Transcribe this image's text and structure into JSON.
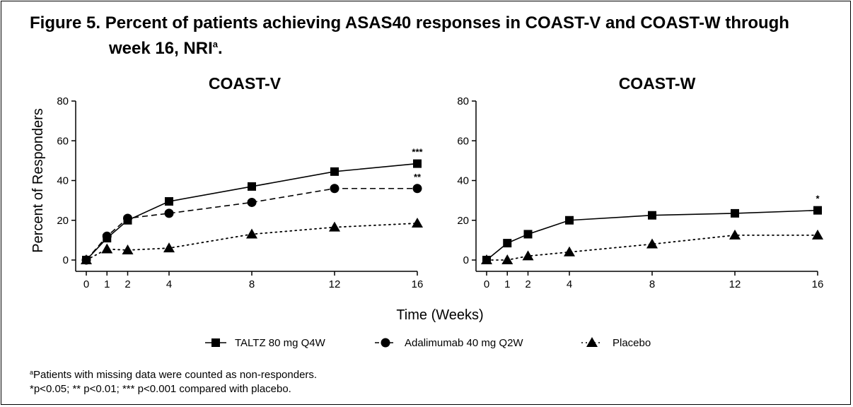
{
  "figure": {
    "title_line1": "Figure 5. Percent of patients achieving ASAS40 responses in COAST-V and COAST-W through",
    "title_line2": "week 16, NRI",
    "title_sup": "a",
    "title_end": "."
  },
  "footnotes": {
    "note_a_sup": "a",
    "note_a": "Patients with missing data were counted as non-responders.",
    "note_p": "*p<0.05; ** p<0.01; *** p<0.001 compared with placebo."
  },
  "chart_data": [
    {
      "type": "line",
      "title": "COAST-V",
      "ylabel": "Percent of Responders",
      "xlabel": "Time (Weeks)",
      "x_ticks": [
        0,
        1,
        2,
        4,
        8,
        12,
        16
      ],
      "y_ticks": [
        0,
        20,
        40,
        60,
        80
      ],
      "ylim": [
        0,
        80
      ],
      "xlim": [
        0,
        16
      ],
      "series": [
        {
          "name": "TALTZ 80 mg Q4W",
          "marker": "square",
          "line": "solid",
          "x": [
            0,
            1,
            2,
            4,
            8,
            12,
            16
          ],
          "values": [
            0,
            11,
            20,
            29.5,
            37,
            44.5,
            48.5
          ],
          "annotation": "***"
        },
        {
          "name": "Adalimumab 40 mg Q2W",
          "marker": "circle",
          "line": "dashed",
          "x": [
            0,
            1,
            2,
            4,
            8,
            12,
            16
          ],
          "values": [
            0,
            12,
            21,
            23.5,
            29,
            36,
            36
          ],
          "annotation": "**"
        },
        {
          "name": "Placebo",
          "marker": "triangle",
          "line": "dotted",
          "x": [
            0,
            1,
            2,
            4,
            8,
            12,
            16
          ],
          "values": [
            0,
            5.5,
            5,
            6,
            13,
            16.5,
            18.5
          ],
          "annotation": ""
        }
      ]
    },
    {
      "type": "line",
      "title": "COAST-W",
      "ylabel": "",
      "xlabel": "Time (Weeks)",
      "x_ticks": [
        0,
        1,
        2,
        4,
        8,
        12,
        16
      ],
      "y_ticks": [
        0,
        20,
        40,
        60,
        80
      ],
      "ylim": [
        0,
        80
      ],
      "xlim": [
        0,
        16
      ],
      "series": [
        {
          "name": "TALTZ 80 mg Q4W",
          "marker": "square",
          "line": "solid",
          "x": [
            0,
            1,
            2,
            4,
            8,
            12,
            16
          ],
          "values": [
            0,
            8.5,
            13,
            20,
            22.5,
            23.5,
            25
          ],
          "annotation": "*"
        },
        {
          "name": "Placebo",
          "marker": "triangle",
          "line": "dotted",
          "x": [
            0,
            1,
            2,
            4,
            8,
            12,
            16
          ],
          "values": [
            0,
            0,
            2,
            4,
            8,
            12.5,
            12.5
          ],
          "annotation": ""
        }
      ]
    }
  ],
  "shared_xlabel": "Time (Weeks)",
  "legend": [
    {
      "label": "TALTZ 80 mg Q4W",
      "marker": "square",
      "line": "solid"
    },
    {
      "label": "Adalimumab 40 mg Q2W",
      "marker": "circle",
      "line": "dashed"
    },
    {
      "label": "Placebo",
      "marker": "triangle",
      "line": "dotted"
    }
  ],
  "colors": {
    "ink": "#000000",
    "background": "#ffffff"
  }
}
